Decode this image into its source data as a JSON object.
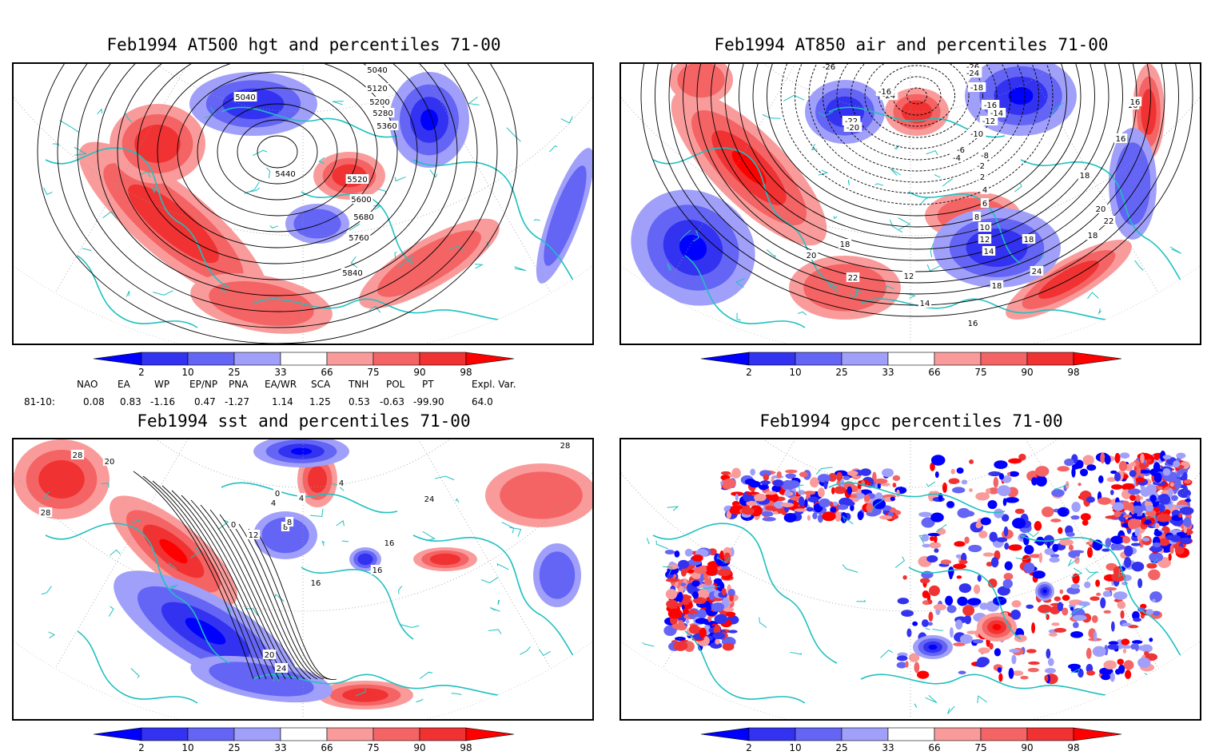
{
  "panels": [
    {
      "id": "tl",
      "title": "Feb1994 AT500 hgt and percentiles 71-00",
      "contour_labels": [
        "5040",
        "5040",
        "5120",
        "5200",
        "5280",
        "5360",
        "5440",
        "5520",
        "5600",
        "5680",
        "5760",
        "5840"
      ]
    },
    {
      "id": "tr",
      "title": "Feb1994 AT850 air and percentiles 71-00",
      "contour_labels": [
        "-26",
        "-26",
        "-24",
        "-24",
        "-22",
        "-20",
        "-18",
        "-16",
        "-16",
        "-14",
        "-12",
        "-10",
        "-8",
        "-6",
        "-4",
        "-2",
        "2",
        "4",
        "6",
        "8",
        "10",
        "12",
        "14",
        "16",
        "18",
        "20",
        "22",
        "24",
        "12",
        "14",
        "16",
        "18",
        "16",
        "18",
        "16",
        "16",
        "18",
        "20",
        "22",
        "18"
      ]
    },
    {
      "id": "bl",
      "title": "Feb1994 sst and percentiles 71-00",
      "contour_labels": [
        "28",
        "20",
        "28",
        "0",
        "4",
        "8",
        "12",
        "0",
        "4",
        "8",
        "16",
        "16",
        "20",
        "24",
        "28",
        "24",
        "4",
        "28",
        "16"
      ]
    },
    {
      "id": "br",
      "title": "Feb1994 gpcc percentiles 71-00",
      "contour_labels": []
    }
  ],
  "colorbar": {
    "labels": [
      "2",
      "10",
      "25",
      "33",
      "66",
      "75",
      "90",
      "98"
    ],
    "colors": {
      "blue_dark": "#0000ff",
      "blue_mid": "#3232f0",
      "blue_light": "#6464f5",
      "blue_pale": "#a0a0fa",
      "white": "#ffffff",
      "red_pale": "#fa9b9b",
      "red_light": "#f56464",
      "red_mid": "#f03232",
      "red_dark": "#ff0000"
    }
  },
  "indices": {
    "headers": [
      "NAO",
      "EA",
      "WP",
      "EP/NP",
      "PNA",
      "EA/WR",
      "SCA",
      "TNH",
      "POL",
      "PT",
      "Expl. Var."
    ],
    "row_label": "81-10:",
    "values": [
      "0.08",
      "0.83",
      "-1.16",
      "0.47",
      "-1.27",
      "1.14",
      "1.25",
      "0.53",
      "-0.63",
      "-99.90",
      "64.0"
    ]
  },
  "colors": {
    "coast": "#20c0c0",
    "contour": "#000000",
    "grid": "#999999"
  }
}
